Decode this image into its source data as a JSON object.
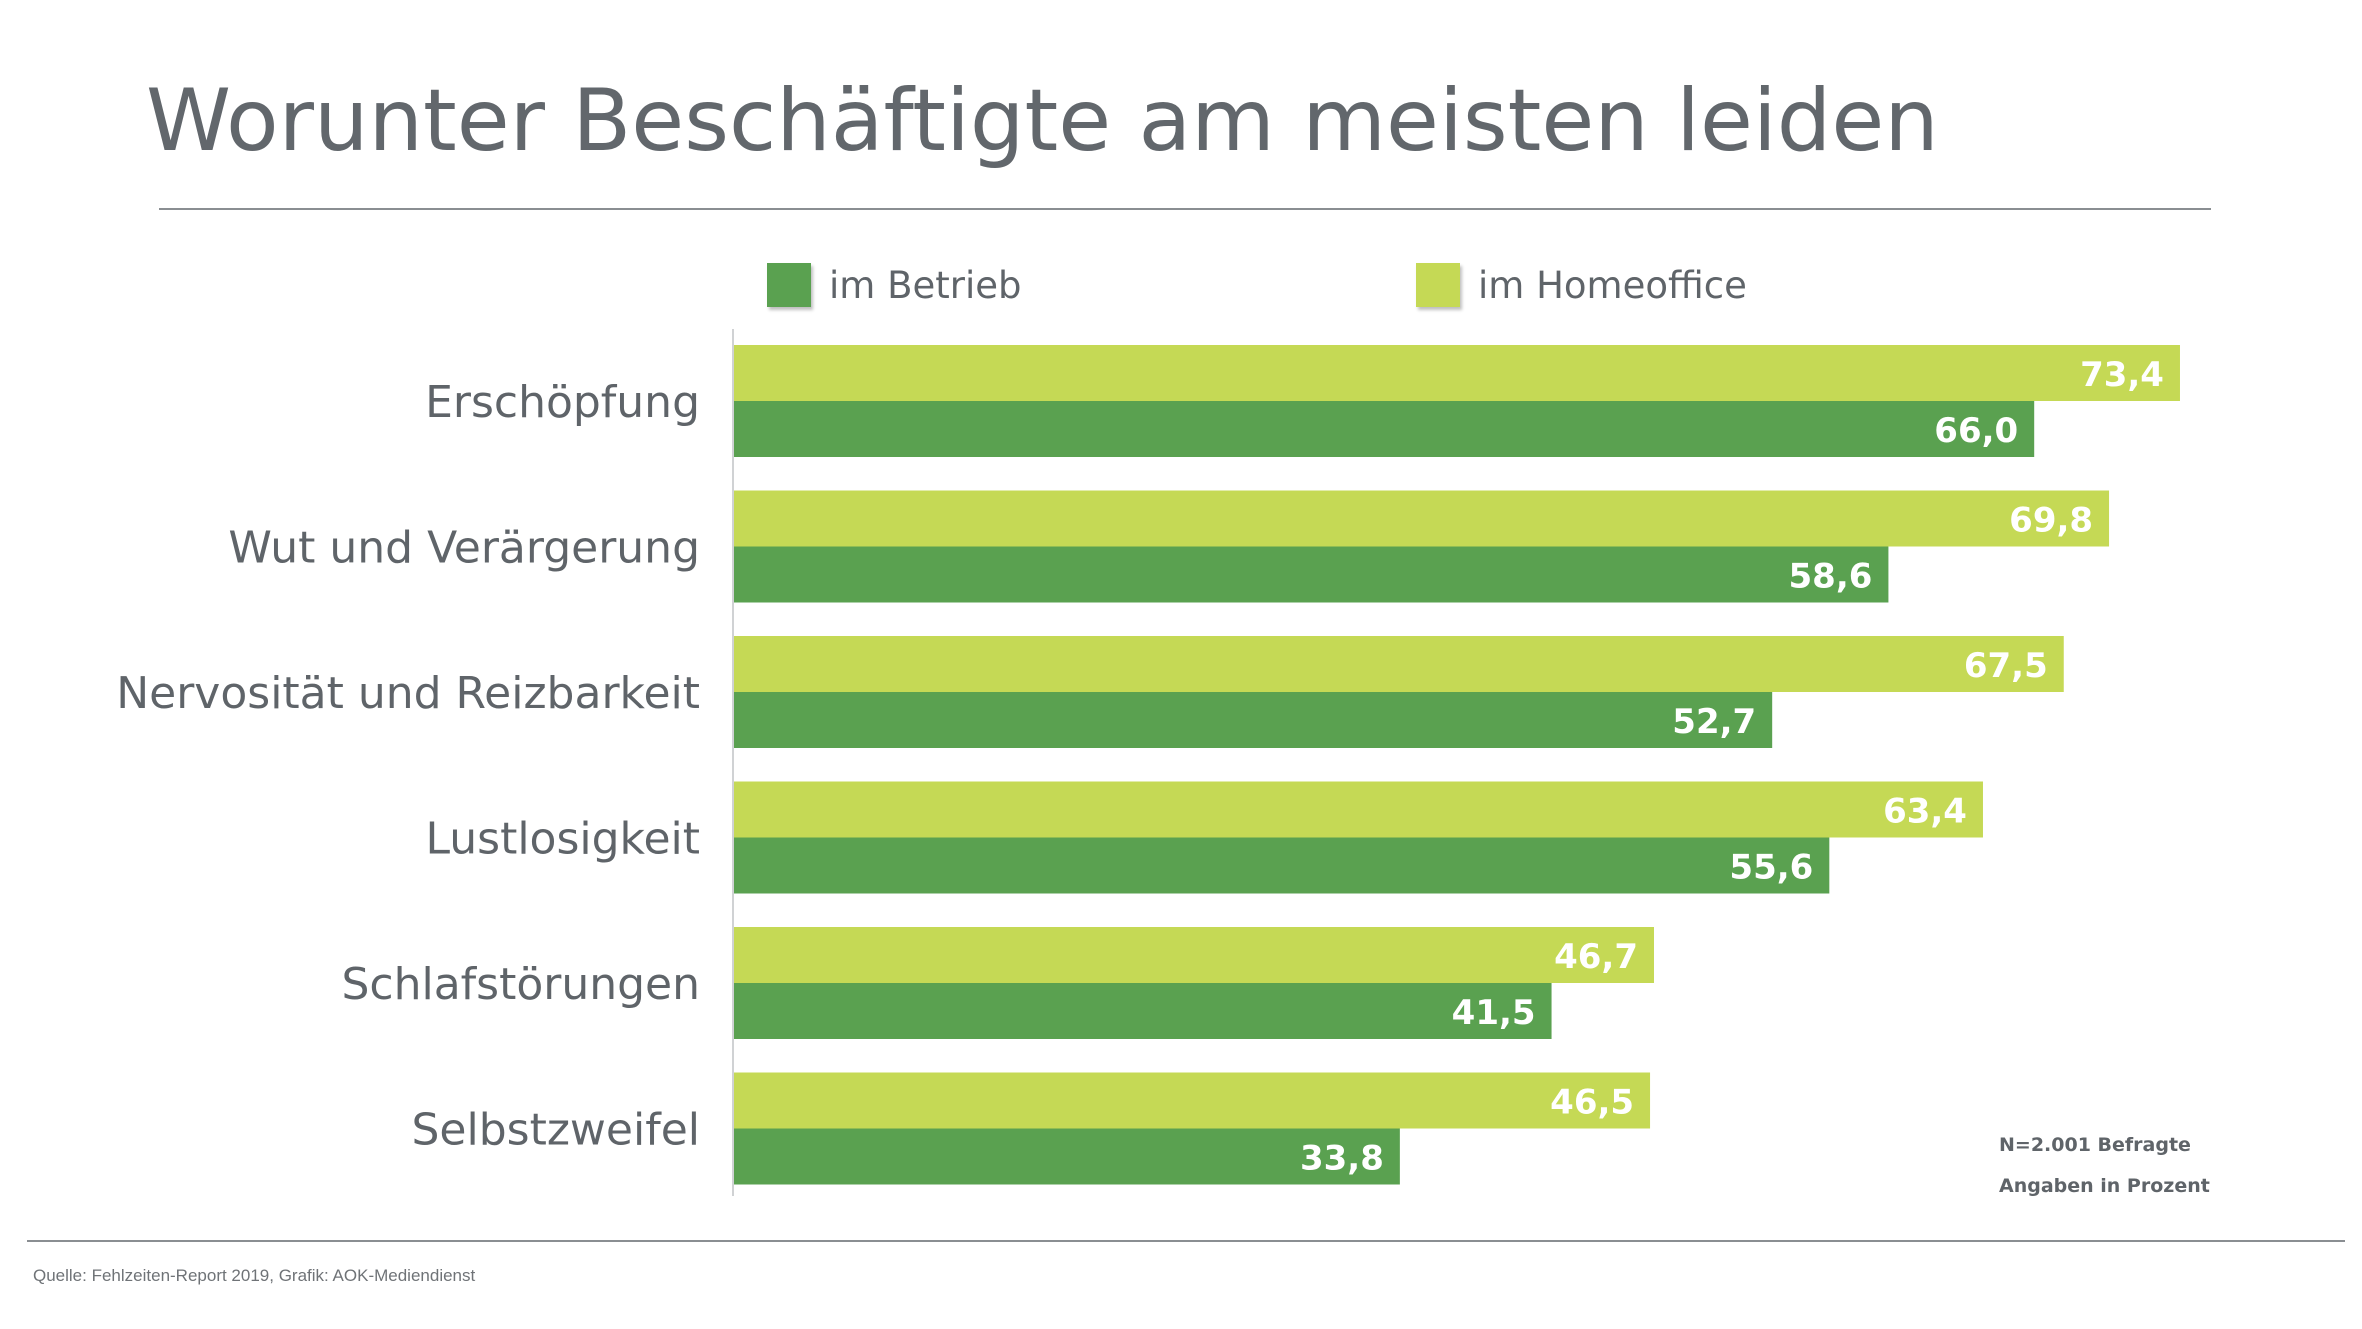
{
  "title": "Worunter Beschäftigte am meisten leiden",
  "notes": {
    "sample": "N=2.001 Befragte",
    "unit": "Angaben in Prozent"
  },
  "source": "Quelle: Fehlzeiten-Report 2019, Grafik: AOK-Mediendienst",
  "colors": {
    "betrieb": "#5aa150",
    "homeoffice": "#c5d955",
    "text": "#5f6469"
  },
  "chart_data": {
    "type": "bar",
    "orientation": "horizontal",
    "title": "Worunter Beschäftigte am meisten leiden",
    "categories": [
      "Erschöpfung",
      "Wut und Verärgerung",
      "Nervosität und Reizbarkeit",
      "Lustlosigkeit",
      "Schlafstörungen",
      "Selbstzweifel"
    ],
    "series": [
      {
        "name": "im Homeoffice",
        "color": "#c5d955",
        "values": [
          73.4,
          69.8,
          67.5,
          63.4,
          46.7,
          46.5
        ],
        "labels": [
          "73,4",
          "69,8",
          "67,5",
          "63,4",
          "46,7",
          "46,5"
        ]
      },
      {
        "name": "im Betrieb",
        "color": "#5aa150",
        "values": [
          66.0,
          58.6,
          52.7,
          55.6,
          41.5,
          33.8
        ],
        "labels": [
          "66,0",
          "58,6",
          "52,7",
          "55,6",
          "41,5",
          "33,8"
        ]
      }
    ],
    "legend_order": [
      "im Betrieb",
      "im Homeoffice"
    ],
    "legend": "top",
    "xlim": [
      0,
      100
    ],
    "grid": false,
    "data_labels": "inside-end"
  }
}
